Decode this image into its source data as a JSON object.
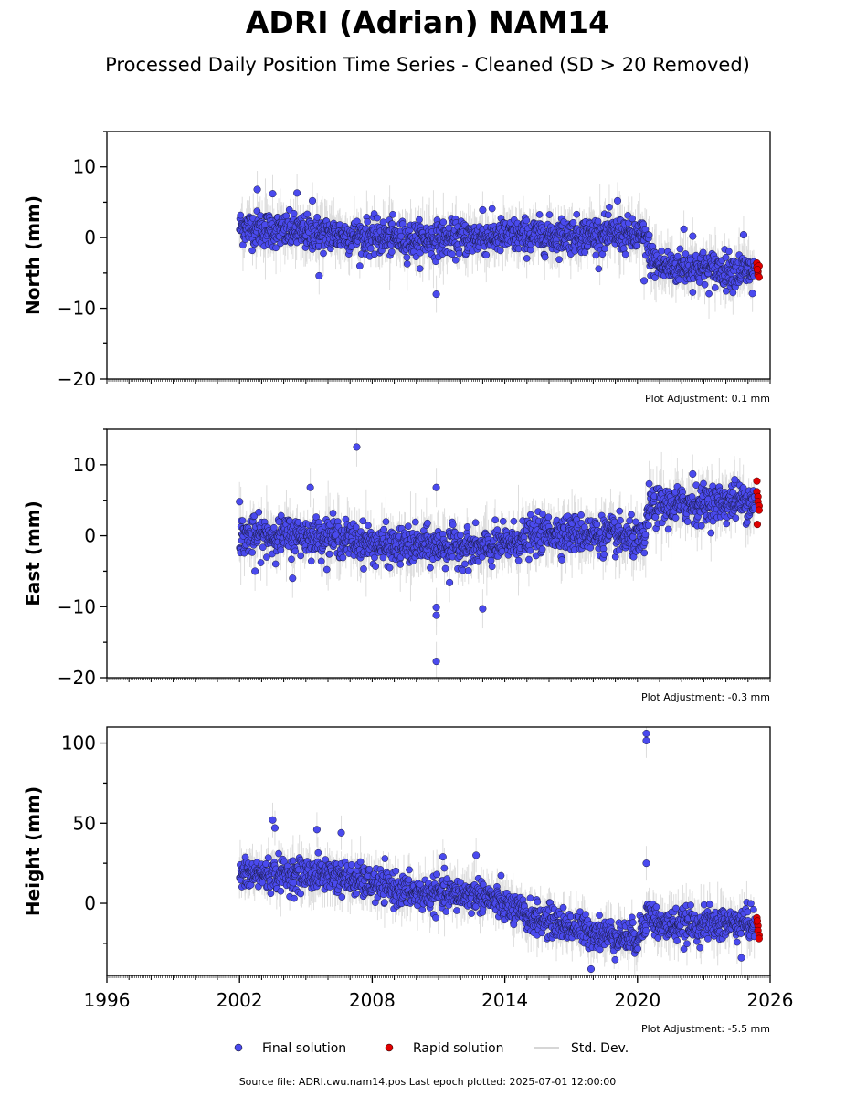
{
  "title": "ADRI (Adrian) NAM14",
  "subtitle": "Processed Daily Position Time Series - Cleaned (SD > 20 Removed)",
  "footer": "Source file: ADRI.cwu.nam14.pos  Last epoch plotted: 2025-07-01 12:00:00",
  "colors": {
    "final": "#4a4aee",
    "rapid": "#e00000",
    "stddev": "#c8c8c8"
  },
  "legend": {
    "placement": "bottom-center",
    "items": [
      {
        "label": "Final solution",
        "color": "#4a4aee",
        "kind": "dot"
      },
      {
        "label": "Rapid solution",
        "color": "#e00000",
        "kind": "dot"
      },
      {
        "label": "Std. Dev.",
        "color": "#c8c8c8",
        "kind": "line"
      }
    ]
  },
  "chart_data": [
    {
      "type": "scatter",
      "ylabel": "North (mm)",
      "xlim": [
        1996,
        2026
      ],
      "ylim": [
        -20,
        15
      ],
      "yticks": [
        "10",
        "0",
        "−10",
        "−20"
      ],
      "yticks_values": [
        10,
        0,
        -10,
        -20
      ],
      "xticks": [],
      "adjustment": "Plot Adjustment: 0.1 mm",
      "grid": false,
      "final_trend": [
        [
          2002.0,
          1.5
        ],
        [
          2005.0,
          0.7
        ],
        [
          2010.0,
          -0.3
        ],
        [
          2014.0,
          0.2
        ],
        [
          2019.0,
          0.5
        ],
        [
          2020.4,
          0.0
        ],
        [
          2020.6,
          -3.0
        ],
        [
          2021.0,
          -4.0
        ],
        [
          2025.3,
          -4.8
        ]
      ],
      "final_spread": 2.2,
      "final_range": [
        2002.0,
        2025.3
      ],
      "outliers": [
        [
          2002.8,
          6.8
        ],
        [
          2003.5,
          6.2
        ],
        [
          2004.6,
          6.3
        ],
        [
          2005.3,
          5.2
        ],
        [
          2005.6,
          -5.4
        ],
        [
          2010.9,
          -8.0
        ],
        [
          2013.0,
          3.9
        ],
        [
          2019.1,
          5.2
        ],
        [
          2020.3,
          -6.1
        ],
        [
          2022.1,
          1.2
        ],
        [
          2022.5,
          0.2
        ],
        [
          2024.8,
          0.4
        ],
        [
          2025.2,
          -7.9
        ]
      ],
      "rapid": [
        [
          2025.4,
          -3.6
        ],
        [
          2025.4,
          -4.2
        ],
        [
          2025.45,
          -4.8
        ],
        [
          2025.45,
          -5.3
        ],
        [
          2025.5,
          -4.0
        ],
        [
          2025.5,
          -5.6
        ],
        [
          2025.42,
          -4.5
        ]
      ],
      "stddev_range": [
        -15.2,
        13.5
      ]
    },
    {
      "type": "scatter",
      "ylabel": "East (mm)",
      "xlim": [
        1996,
        2026
      ],
      "ylim": [
        -20,
        15
      ],
      "yticks": [
        "10",
        "0",
        "−10",
        "−20"
      ],
      "yticks_values": [
        10,
        0,
        -10,
        -20
      ],
      "xticks": [],
      "adjustment": "Plot Adjustment: -0.3 mm",
      "grid": false,
      "final_trend": [
        [
          2002.0,
          0.0
        ],
        [
          2006.0,
          0.0
        ],
        [
          2008.5,
          -1.5
        ],
        [
          2012.0,
          -1.5
        ],
        [
          2013.0,
          -2.0
        ],
        [
          2016.0,
          0.5
        ],
        [
          2019.0,
          0.0
        ],
        [
          2020.3,
          -1.0
        ],
        [
          2020.5,
          4.0
        ],
        [
          2025.3,
          5.0
        ]
      ],
      "final_spread": 2.3,
      "final_range": [
        2002.0,
        2025.3
      ],
      "outliers": [
        [
          2002.0,
          4.8
        ],
        [
          2002.7,
          -5.0
        ],
        [
          2004.4,
          -6.0
        ],
        [
          2005.2,
          6.8
        ],
        [
          2007.3,
          12.5
        ],
        [
          2010.9,
          6.8
        ],
        [
          2010.9,
          -10.1
        ],
        [
          2010.9,
          -11.2
        ],
        [
          2010.9,
          -17.7
        ],
        [
          2011.5,
          -6.6
        ],
        [
          2013.0,
          -10.3
        ],
        [
          2022.5,
          8.7
        ],
        [
          2024.4,
          7.9
        ]
      ],
      "rapid": [
        [
          2025.4,
          7.7
        ],
        [
          2025.4,
          6.2
        ],
        [
          2025.45,
          5.5
        ],
        [
          2025.45,
          4.8
        ],
        [
          2025.5,
          4.2
        ],
        [
          2025.5,
          3.6
        ],
        [
          2025.42,
          1.6
        ]
      ],
      "stddev_range": [
        -13.2,
        15.0
      ]
    },
    {
      "type": "scatter",
      "ylabel": "Height (mm)",
      "xlim": [
        1996,
        2026
      ],
      "ylim": [
        -45,
        110
      ],
      "yticks": [
        "100",
        "50",
        "0"
      ],
      "yticks_values": [
        100,
        50,
        0
      ],
      "xticks": [
        "1996",
        "2002",
        "2008",
        "2014",
        "2020",
        "2026"
      ],
      "xticks_values": [
        1996,
        2002,
        2008,
        2014,
        2020,
        2026
      ],
      "adjustment": "Plot Adjustment: -5.5 mm",
      "grid": false,
      "final_trend": [
        [
          2002.0,
          18.0
        ],
        [
          2006.0,
          18.0
        ],
        [
          2010.0,
          6.0
        ],
        [
          2013.0,
          5.0
        ],
        [
          2015.0,
          -8.0
        ],
        [
          2018.0,
          -18.0
        ],
        [
          2020.0,
          -22.0
        ],
        [
          2020.5,
          -5.0
        ],
        [
          2021.0,
          -14.0
        ],
        [
          2025.3,
          -12.0
        ]
      ],
      "final_spread": 9.0,
      "final_range": [
        2002.0,
        2025.3
      ],
      "outliers": [
        [
          2003.5,
          52.0
        ],
        [
          2003.6,
          47.0
        ],
        [
          2005.5,
          46.0
        ],
        [
          2006.6,
          44.0
        ],
        [
          2011.2,
          29.0
        ],
        [
          2012.7,
          30.0
        ],
        [
          2017.9,
          -41.0
        ],
        [
          2020.4,
          106.0
        ],
        [
          2020.4,
          101.5
        ],
        [
          2020.4,
          25.0
        ],
        [
          2024.7,
          -34.0
        ]
      ],
      "rapid": [
        [
          2025.4,
          -9.0
        ],
        [
          2025.4,
          -12.0
        ],
        [
          2025.45,
          -14.0
        ],
        [
          2025.45,
          -17.0
        ],
        [
          2025.5,
          -20.0
        ],
        [
          2025.5,
          -22.0
        ],
        [
          2025.42,
          -11.0
        ]
      ],
      "stddev_range": [
        -40.0,
        58.0
      ]
    }
  ]
}
